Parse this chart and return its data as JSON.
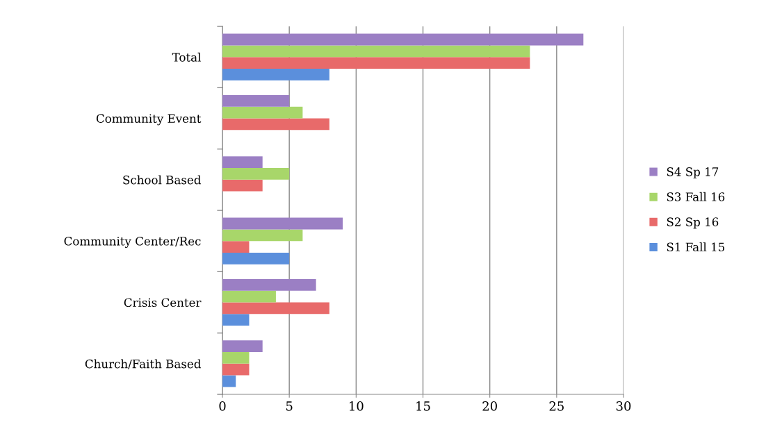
{
  "chart_data": {
    "type": "bar",
    "orientation": "horizontal",
    "categories": [
      "Total",
      "Community Event",
      "School Based",
      "Community Center/Rec",
      "Crisis Center",
      "Church/Faith Based"
    ],
    "series": [
      {
        "name": "S1 Fall 15",
        "color": "#5b8fdc",
        "values": [
          8,
          null,
          null,
          5,
          2,
          1
        ]
      },
      {
        "name": "S2 Sp 16",
        "color": "#e86a6a",
        "values": [
          23,
          8,
          3,
          2,
          8,
          2
        ]
      },
      {
        "name": "S3 Fall 16",
        "color": "#a8d66a",
        "values": [
          23,
          6,
          5,
          6,
          4,
          2
        ]
      },
      {
        "name": "S4 Sp 17",
        "color": "#9b7fc4",
        "values": [
          27,
          5,
          3,
          9,
          7,
          3
        ]
      }
    ],
    "xlim": [
      0,
      30
    ],
    "xticks": [
      0,
      5,
      10,
      15,
      20,
      25,
      30
    ],
    "grid": "x",
    "legend": "right"
  }
}
